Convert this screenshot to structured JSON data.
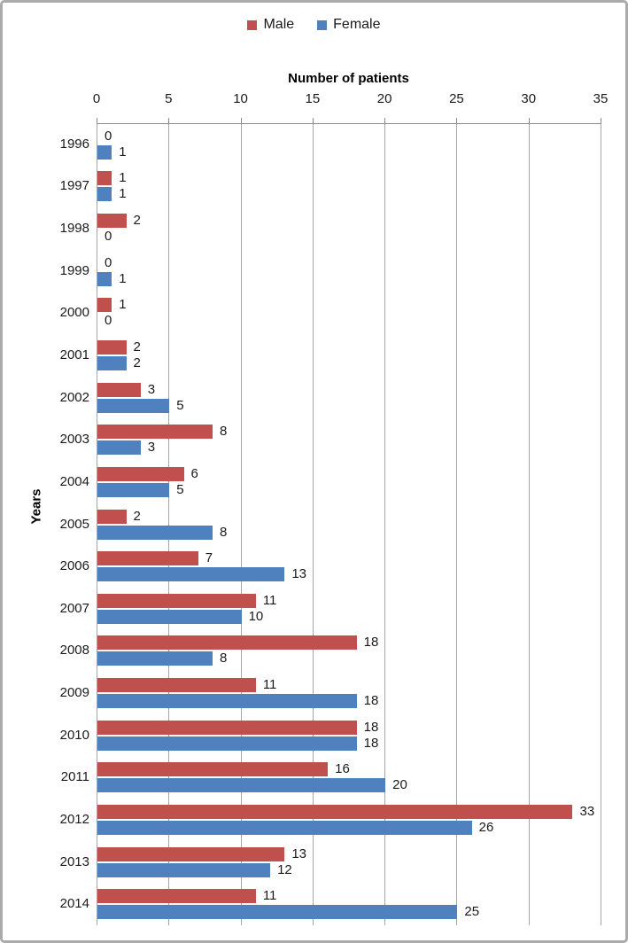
{
  "legend": {
    "items": [
      {
        "label": "Male",
        "color": "#C0504D"
      },
      {
        "label": "Female",
        "color": "#4E81BD"
      }
    ]
  },
  "colors": {
    "male": "#C0504D",
    "female": "#4E81BD",
    "gridline": "#A6A6A6",
    "axis_line": "#8C8C8C",
    "frame_border": "#ABABAB",
    "text": "#1A1A1A"
  },
  "chart_data": {
    "type": "bar",
    "orientation": "horizontal",
    "title": "",
    "xlabel": "Number of patients",
    "ylabel": "Years",
    "xlim": [
      0,
      35
    ],
    "xticks": [
      0,
      5,
      10,
      15,
      20,
      25,
      30,
      35
    ],
    "grid": true,
    "legend_position": "top-center",
    "value_labels": true,
    "categories": [
      "1996",
      "1997",
      "1998",
      "1999",
      "2000",
      "2001",
      "2002",
      "2003",
      "2004",
      "2005",
      "2006",
      "2007",
      "2008",
      "2009",
      "2010",
      "2011",
      "2012",
      "2013",
      "2014"
    ],
    "series": [
      {
        "name": "Male",
        "color": "#C0504D",
        "values": [
          0,
          1,
          2,
          0,
          1,
          2,
          3,
          8,
          6,
          2,
          7,
          11,
          18,
          11,
          18,
          16,
          33,
          13,
          11
        ]
      },
      {
        "name": "Female",
        "color": "#4E81BD",
        "values": [
          1,
          1,
          0,
          1,
          0,
          2,
          5,
          3,
          5,
          8,
          13,
          10,
          8,
          18,
          18,
          20,
          26,
          12,
          25
        ]
      }
    ]
  }
}
